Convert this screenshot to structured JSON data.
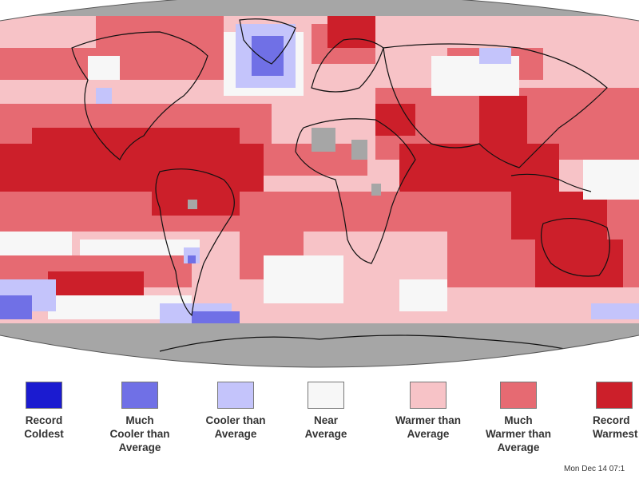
{
  "legend": {
    "items": [
      {
        "key": "record_coldest",
        "label": "Record\nColdest",
        "color": "#1b1bd0"
      },
      {
        "key": "much_cooler",
        "label": "Much\nCooler than\nAverage",
        "color": "#7070e6"
      },
      {
        "key": "cooler",
        "label": "Cooler than\nAverage",
        "color": "#c4c4fb"
      },
      {
        "key": "near",
        "label": "Near\nAverage",
        "color": "#f7f7f7"
      },
      {
        "key": "warmer",
        "label": "Warmer than\nAverage",
        "color": "#f7c3c7"
      },
      {
        "key": "much_warmer",
        "label": "Much\nWarmer than\nAverage",
        "color": "#e66a72"
      },
      {
        "key": "record_warmest",
        "label": "Record\nWarmest",
        "color": "#cc1f2a"
      }
    ]
  },
  "timestamp": "Mon Dec 14 07:1",
  "colors": {
    "no_data": "#a6a6a6",
    "coastline": "#111111",
    "background": "#ffffff"
  }
}
